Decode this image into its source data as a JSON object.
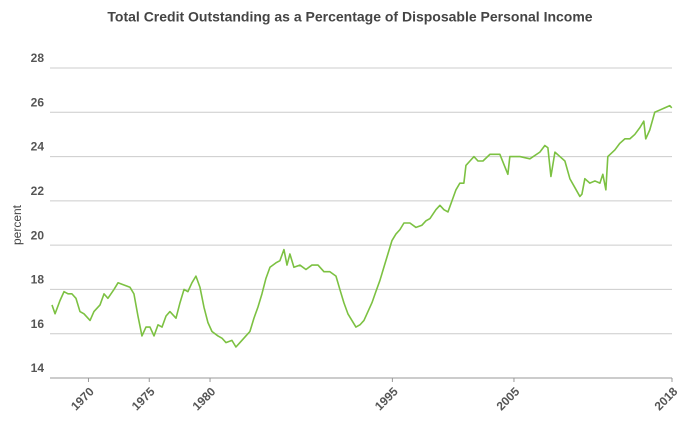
{
  "chart_data": {
    "type": "line",
    "title": "Total Credit Outstanding as a Percentage of Disposable Personal Income",
    "y_label": "percent",
    "xlim": [
      1967,
      2018
    ],
    "xticks": [
      1970,
      1975,
      1980,
      1995,
      2005,
      2018
    ],
    "ylim": [
      14,
      28
    ],
    "yticks": [
      14,
      16,
      18,
      20,
      22,
      24,
      26,
      28
    ],
    "grid": true,
    "x": [
      1967.0,
      1967.25,
      1967.66,
      1967.99,
      1968.32,
      1968.64,
      1968.97,
      1969.3,
      1969.63,
      1970.13,
      1970.45,
      1970.95,
      1971.28,
      1971.6,
      1972.1,
      1972.43,
      1972.92,
      1973.41,
      1973.74,
      1974.07,
      1974.4,
      1974.73,
      1975.06,
      1975.39,
      1975.72,
      1976.05,
      1976.38,
      1976.7,
      1977.2,
      1977.53,
      1977.86,
      1978.18,
      1978.51,
      1978.84,
      1979.17,
      1979.5,
      1979.83,
      1980.16,
      1980.65,
      1980.98,
      1981.31,
      1981.8,
      1982.13,
      1982.46,
      1982.95,
      1983.28,
      1983.61,
      1983.94,
      1984.27,
      1984.6,
      1984.93,
      1985.42,
      1985.75,
      1986.08,
      1986.33,
      1986.57,
      1986.9,
      1987.39,
      1987.89,
      1988.38,
      1988.88,
      1989.37,
      1989.86,
      1990.36,
      1990.68,
      1991.01,
      1991.34,
      1991.67,
      1992.0,
      1992.33,
      1992.66,
      1992.99,
      1993.32,
      1993.64,
      1993.97,
      1994.3,
      1994.63,
      1994.96,
      1995.29,
      1995.62,
      1995.95,
      1996.44,
      1996.94,
      1997.43,
      1997.76,
      1998.09,
      1998.58,
      1998.91,
      1999.24,
      1999.57,
      1999.9,
      2000.23,
      2000.55,
      2000.88,
      2001.05,
      2001.38,
      2001.71,
      2002.04,
      2002.45,
      2003.02,
      2003.84,
      2004.5,
      2004.66,
      2005.49,
      2006.31,
      2007.13,
      2007.54,
      2007.79,
      2008.04,
      2008.37,
      2008.78,
      2009.19,
      2009.6,
      2010.01,
      2010.42,
      2010.59,
      2010.83,
      2011.24,
      2011.66,
      2012.07,
      2012.31,
      2012.56,
      2012.72,
      2013.3,
      2013.71,
      2014.12,
      2014.53,
      2014.94,
      2015.35,
      2015.68,
      2015.84,
      2016.17,
      2016.58,
      2016.99,
      2017.4,
      2017.82,
      2017.98
    ],
    "series": [
      {
        "name": "percent",
        "color": "#7cc142",
        "values": [
          17.3,
          16.9,
          17.5,
          17.9,
          17.8,
          17.8,
          17.6,
          17.0,
          16.9,
          16.6,
          17.0,
          17.3,
          17.8,
          17.6,
          18.0,
          18.3,
          18.2,
          18.1,
          17.8,
          16.8,
          15.9,
          16.3,
          16.3,
          15.9,
          16.4,
          16.3,
          16.8,
          17.0,
          16.7,
          17.4,
          18.0,
          17.9,
          18.3,
          18.6,
          18.1,
          17.2,
          16.5,
          16.1,
          15.9,
          15.8,
          15.6,
          15.7,
          15.4,
          15.6,
          15.9,
          16.1,
          16.7,
          17.2,
          17.8,
          18.5,
          19.0,
          19.2,
          19.3,
          19.8,
          19.1,
          19.6,
          19.0,
          19.1,
          18.9,
          19.1,
          19.1,
          18.8,
          18.8,
          18.6,
          18.0,
          17.4,
          16.9,
          16.6,
          16.3,
          16.4,
          16.6,
          17.0,
          17.4,
          17.9,
          18.4,
          19.0,
          19.6,
          20.2,
          20.5,
          20.7,
          21.0,
          21.0,
          20.8,
          20.9,
          21.1,
          21.2,
          21.6,
          21.8,
          21.6,
          21.5,
          22.0,
          22.5,
          22.8,
          22.8,
          23.6,
          23.8,
          24.0,
          23.8,
          23.8,
          24.1,
          24.1,
          23.2,
          24.0,
          24.0,
          23.9,
          24.2,
          24.5,
          24.4,
          23.1,
          24.2,
          24.0,
          23.8,
          23.0,
          22.6,
          22.2,
          22.3,
          23.0,
          22.8,
          22.9,
          22.8,
          23.2,
          22.5,
          24.0,
          24.3,
          24.6,
          24.8,
          24.8,
          25.0,
          25.3,
          25.6,
          24.8,
          25.2,
          26.0,
          26.1,
          26.2,
          26.3,
          26.2
        ]
      }
    ]
  }
}
